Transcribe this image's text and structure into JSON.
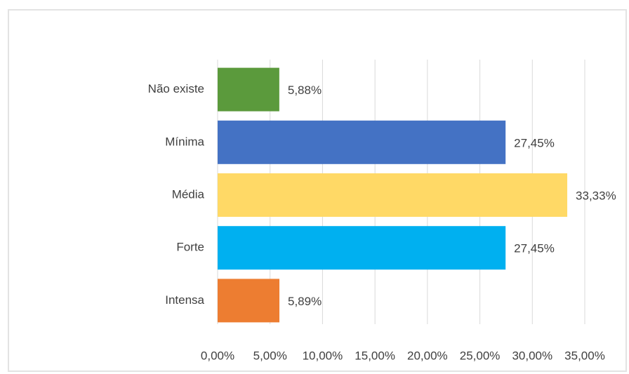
{
  "chart_data": {
    "type": "bar",
    "orientation": "horizontal",
    "categories": [
      "Não existe",
      "Mínima",
      "Média",
      "Forte",
      "Intensa"
    ],
    "values": [
      5.88,
      27.45,
      33.33,
      27.45,
      5.89
    ],
    "value_labels": [
      "5,88%",
      "27,45%",
      "33,33%",
      "27,45%",
      "5,89%"
    ],
    "colors": [
      "#5b9a3c",
      "#4472c4",
      "#ffd966",
      "#00b0f0",
      "#ed7d31"
    ],
    "xlim": [
      0,
      35
    ],
    "xticks": [
      {
        "value": 0,
        "label": "0,00%"
      },
      {
        "value": 5,
        "label": "5,00%"
      },
      {
        "value": 10,
        "label": "10,00%"
      },
      {
        "value": 15,
        "label": "15,00%"
      },
      {
        "value": 20,
        "label": "20,00%"
      },
      {
        "value": 25,
        "label": "25,00%"
      },
      {
        "value": 30,
        "label": "30,00%"
      },
      {
        "value": 35,
        "label": "35,00%"
      }
    ],
    "grid": true
  }
}
